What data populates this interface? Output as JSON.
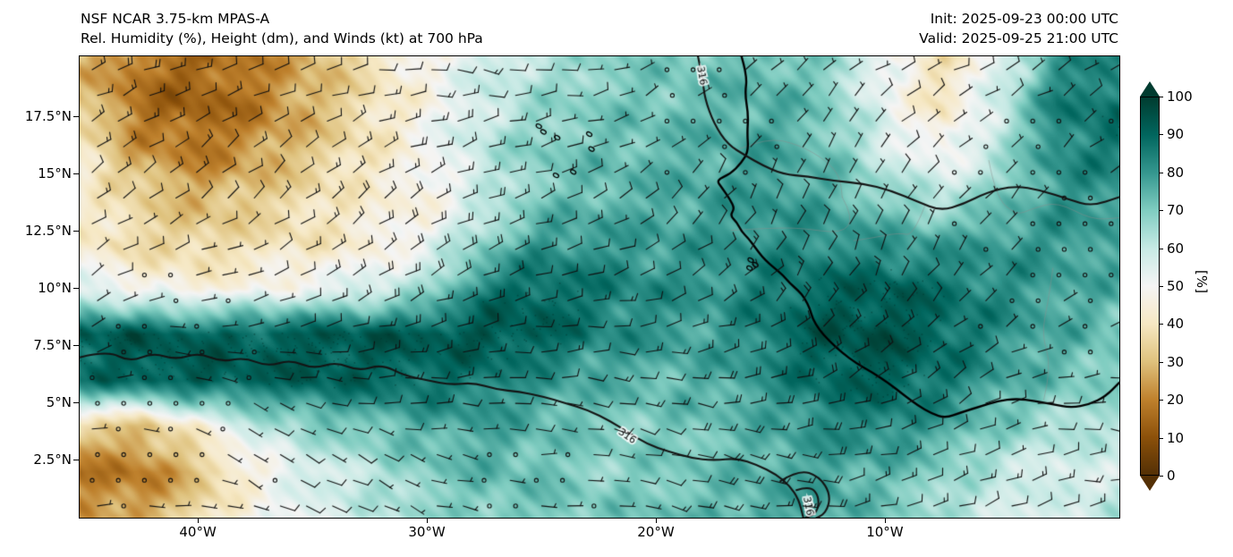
{
  "header": {
    "title_line1": "NSF NCAR 3.75-km MPAS-A",
    "title_line2": "Rel. Humidity (%), Height (dm), and Winds (kt) at 700 hPa",
    "init_label": "Init: 2025-09-23 00:00 UTC",
    "valid_label": "Valid: 2025-09-25 21:00 UTC"
  },
  "chart_data": {
    "type": "heatmap",
    "model": "NSF NCAR 3.75-km MPAS-A",
    "title": "Rel. Humidity (%), Height (dm), and Winds (kt) at 700 hPa",
    "init_time": "2025-09-23 00:00 UTC",
    "valid_time": "2025-09-25 21:00 UTC",
    "field": "relative humidity at 700 hPa (%), with height contours (dm) and wind barbs (kt)",
    "lon_range": [
      -45.2,
      0.2
    ],
    "lat_range": [
      0.0,
      20.15
    ],
    "x_ticks": [
      {
        "value": -40,
        "label": "40°W"
      },
      {
        "value": -30,
        "label": "30°W"
      },
      {
        "value": -20,
        "label": "20°W"
      },
      {
        "value": -10,
        "label": "10°W"
      }
    ],
    "y_ticks": [
      {
        "value": 17.5,
        "label": "17.5°N"
      },
      {
        "value": 15,
        "label": "15°N"
      },
      {
        "value": 12.5,
        "label": "12.5°N"
      },
      {
        "value": 10,
        "label": "10°N"
      },
      {
        "value": 7.5,
        "label": "7.5°N"
      },
      {
        "value": 5,
        "label": "5°N"
      },
      {
        "value": 2.5,
        "label": "2.5°N"
      }
    ],
    "grid_lons": [
      -45,
      -42.5,
      -40,
      -37.5,
      -35,
      -32.5,
      -30,
      -27.5,
      -25,
      -22.5,
      -20,
      -17.5,
      -15,
      -12.5,
      -10,
      -7.5,
      -5,
      -2.5,
      0
    ],
    "grid_lats": [
      20,
      18,
      16,
      14,
      12,
      10,
      8,
      6,
      4,
      2,
      0
    ],
    "rh_grid": [
      [
        28,
        18,
        15,
        20,
        28,
        38,
        48,
        58,
        62,
        68,
        70,
        72,
        74,
        68,
        50,
        38,
        55,
        80,
        84
      ],
      [
        32,
        16,
        13,
        18,
        28,
        38,
        48,
        58,
        66,
        70,
        72,
        74,
        76,
        70,
        52,
        40,
        60,
        85,
        88
      ],
      [
        40,
        24,
        18,
        24,
        32,
        40,
        50,
        62,
        70,
        72,
        74,
        76,
        78,
        72,
        58,
        48,
        62,
        83,
        85
      ],
      [
        45,
        34,
        28,
        32,
        38,
        44,
        46,
        58,
        70,
        74,
        76,
        78,
        80,
        76,
        68,
        62,
        70,
        80,
        80
      ],
      [
        42,
        36,
        34,
        38,
        40,
        44,
        52,
        68,
        80,
        80,
        78,
        80,
        82,
        82,
        80,
        78,
        80,
        80,
        78
      ],
      [
        55,
        48,
        45,
        48,
        52,
        56,
        64,
        86,
        90,
        86,
        82,
        80,
        86,
        90,
        92,
        88,
        82,
        78,
        75
      ],
      [
        92,
        93,
        91,
        91,
        93,
        93,
        93,
        94,
        92,
        84,
        80,
        78,
        86,
        94,
        95,
        90,
        82,
        76,
        72
      ],
      [
        88,
        91,
        93,
        91,
        92,
        90,
        88,
        86,
        80,
        76,
        74,
        76,
        82,
        90,
        92,
        86,
        78,
        72,
        70
      ],
      [
        35,
        30,
        45,
        60,
        68,
        72,
        76,
        78,
        74,
        70,
        70,
        72,
        76,
        82,
        84,
        78,
        70,
        64,
        62
      ],
      [
        18,
        18,
        30,
        46,
        56,
        62,
        70,
        74,
        72,
        68,
        70,
        72,
        76,
        78,
        74,
        68,
        60,
        56,
        58
      ],
      [
        24,
        26,
        36,
        50,
        56,
        60,
        66,
        70,
        72,
        70,
        72,
        74,
        78,
        78,
        70,
        64,
        58,
        56,
        62
      ]
    ],
    "colorbar": {
      "label": "[%]",
      "ticks": [
        0,
        10,
        20,
        30,
        40,
        50,
        60,
        70,
        80,
        90,
        100
      ],
      "extend": "both",
      "stops": [
        {
          "v": 0,
          "c": "#543005"
        },
        {
          "v": 10,
          "c": "#8c510a"
        },
        {
          "v": 20,
          "c": "#bf812d"
        },
        {
          "v": 30,
          "c": "#dfc27d"
        },
        {
          "v": 40,
          "c": "#f6e8c3"
        },
        {
          "v": 50,
          "c": "#f5f5f5"
        },
        {
          "v": 60,
          "c": "#c7eae5"
        },
        {
          "v": 70,
          "c": "#80cdc1"
        },
        {
          "v": 80,
          "c": "#35978f"
        },
        {
          "v": 90,
          "c": "#01665e"
        },
        {
          "v": 100,
          "c": "#003c30"
        }
      ]
    },
    "contours": {
      "value_label": "316",
      "color": "#141414",
      "paths": [
        [
          [
            -18.2,
            20.15
          ],
          [
            -18.0,
            19.2
          ],
          [
            -17.9,
            18.3
          ],
          [
            -17.5,
            17.2
          ],
          [
            -16.9,
            16.3
          ],
          [
            -16.1,
            15.8
          ],
          [
            -15.4,
            15.4
          ],
          [
            -14.5,
            15.0
          ],
          [
            -13.4,
            14.9
          ],
          [
            -12.2,
            14.7
          ],
          [
            -11.0,
            14.6
          ],
          [
            -9.8,
            14.3
          ],
          [
            -8.6,
            13.8
          ],
          [
            -7.6,
            13.4
          ],
          [
            -6.6,
            13.7
          ],
          [
            -5.6,
            14.2
          ],
          [
            -4.4,
            14.5
          ],
          [
            -3.2,
            14.3
          ],
          [
            -2.0,
            13.9
          ],
          [
            -1.0,
            13.6
          ],
          [
            0.2,
            14.0
          ]
        ],
        [
          [
            -45.2,
            7.0
          ],
          [
            -44,
            7.3
          ],
          [
            -43,
            6.8
          ],
          [
            -42,
            7.2
          ],
          [
            -41,
            6.9
          ],
          [
            -40,
            7.2
          ],
          [
            -39,
            6.8
          ],
          [
            -38,
            7.0
          ],
          [
            -37,
            6.6
          ],
          [
            -36,
            6.9
          ],
          [
            -35,
            6.5
          ],
          [
            -34,
            6.8
          ],
          [
            -33,
            6.4
          ],
          [
            -32,
            6.7
          ],
          [
            -31,
            6.2
          ],
          [
            -30,
            6.0
          ],
          [
            -29,
            5.8
          ],
          [
            -28,
            5.9
          ],
          [
            -27,
            5.6
          ],
          [
            -26,
            5.5
          ],
          [
            -25,
            5.3
          ],
          [
            -24,
            5.0
          ],
          [
            -23,
            4.7
          ],
          [
            -22,
            4.2
          ],
          [
            -21.2,
            3.7
          ],
          [
            -20.4,
            3.2
          ],
          [
            -19.5,
            2.9
          ],
          [
            -18.5,
            2.6
          ],
          [
            -17.5,
            2.5
          ],
          [
            -16.5,
            2.6
          ],
          [
            -15.6,
            2.3
          ],
          [
            -14.8,
            1.9
          ],
          [
            -14.2,
            1.4
          ],
          [
            -13.8,
            0.8
          ],
          [
            -13.6,
            0.0
          ]
        ],
        [
          [
            -14.6,
            1.6
          ],
          [
            -13.8,
            2.1
          ],
          [
            -12.9,
            1.8
          ],
          [
            -12.4,
            1.0
          ],
          [
            -12.6,
            0.2
          ],
          [
            -13.2,
            -0.1
          ]
        ],
        [
          [
            -13.9,
            1.2
          ],
          [
            -13.3,
            1.4
          ],
          [
            -12.9,
            0.9
          ],
          [
            -13.0,
            0.2
          ],
          [
            -13.5,
            0.0
          ]
        ]
      ],
      "labels": [
        {
          "lon": -18.05,
          "lat": 19.3,
          "rot": 80
        },
        {
          "lon": -21.3,
          "lat": 3.55,
          "rot": 35
        },
        {
          "lon": -13.4,
          "lat": 0.5,
          "rot": 78
        }
      ]
    },
    "coastline": {
      "color": "#000000",
      "main": [
        [
          -16.3,
          20.15
        ],
        [
          -16.05,
          19.3
        ],
        [
          -16.15,
          18.5
        ],
        [
          -16.0,
          17.6
        ],
        [
          -16.05,
          16.8
        ],
        [
          -16.0,
          16.0
        ],
        [
          -16.3,
          15.5
        ],
        [
          -16.8,
          15.0
        ],
        [
          -17.4,
          14.75
        ],
        [
          -17.15,
          14.4
        ],
        [
          -16.8,
          13.9
        ],
        [
          -16.6,
          13.5
        ],
        [
          -16.8,
          13.2
        ],
        [
          -16.5,
          12.9
        ],
        [
          -16.3,
          12.5
        ],
        [
          -16.0,
          12.2
        ],
        [
          -15.7,
          11.8
        ],
        [
          -15.4,
          11.4
        ],
        [
          -15.1,
          11.1
        ],
        [
          -14.8,
          10.85
        ],
        [
          -14.5,
          10.6
        ],
        [
          -14.2,
          10.25
        ],
        [
          -13.8,
          9.9
        ],
        [
          -13.55,
          9.6
        ],
        [
          -13.3,
          9.1
        ],
        [
          -13.2,
          8.7
        ],
        [
          -12.9,
          8.2
        ],
        [
          -12.5,
          7.75
        ],
        [
          -11.9,
          7.2
        ],
        [
          -11.3,
          6.75
        ],
        [
          -10.6,
          6.35
        ],
        [
          -9.9,
          5.9
        ],
        [
          -9.2,
          5.35
        ],
        [
          -8.6,
          4.9
        ],
        [
          -8.0,
          4.55
        ],
        [
          -7.4,
          4.35
        ],
        [
          -6.7,
          4.6
        ],
        [
          -5.9,
          4.85
        ],
        [
          -5.1,
          5.1
        ],
        [
          -4.3,
          5.2
        ],
        [
          -3.5,
          5.1
        ],
        [
          -2.7,
          4.95
        ],
        [
          -1.9,
          4.8
        ],
        [
          -1.1,
          4.95
        ],
        [
          -0.4,
          5.3
        ],
        [
          0.2,
          5.9
        ]
      ],
      "islands": [
        [
          -25.15,
          17.1
        ],
        [
          -24.95,
          16.85
        ],
        [
          -24.35,
          16.6
        ],
        [
          -22.95,
          16.75
        ],
        [
          -22.85,
          16.1
        ],
        [
          -23.65,
          15.1
        ],
        [
          -24.4,
          14.95
        ],
        [
          -15.9,
          11.25
        ],
        [
          -15.7,
          11.05
        ],
        [
          -15.95,
          10.9
        ]
      ],
      "borders": [
        [
          [
            -16.4,
            16.1
          ],
          [
            -15.2,
            16.6
          ],
          [
            -13.8,
            16.3
          ],
          [
            -12.6,
            15.6
          ],
          [
            -12.0,
            14.9
          ],
          [
            -11.9,
            14.0
          ]
        ],
        [
          [
            -11.9,
            14.0
          ],
          [
            -11.4,
            13.1
          ],
          [
            -11.9,
            12.4
          ],
          [
            -13.7,
            12.65
          ],
          [
            -14.9,
            12.65
          ],
          [
            -16.75,
            12.55
          ]
        ],
        [
          [
            -5.5,
            15.6
          ],
          [
            -5.2,
            14.0
          ],
          [
            -4.3,
            13.2
          ],
          [
            -3.6,
            13.5
          ],
          [
            -2.5,
            13.8
          ],
          [
            -1.0,
            13.0
          ],
          [
            0.2,
            13.1
          ]
        ],
        [
          [
            -8.3,
            13.6
          ],
          [
            -8.8,
            12.3
          ],
          [
            -9.4,
            12.45
          ],
          [
            -10.7,
            12.2
          ],
          [
            -11.4,
            12.1
          ]
        ],
        [
          [
            -3.1,
            5.15
          ],
          [
            -2.75,
            6.6
          ],
          [
            -3.2,
            8.0
          ],
          [
            -2.9,
            9.5
          ],
          [
            -2.7,
            10.9
          ]
        ]
      ]
    },
    "wind_barbs": {
      "units": "kt",
      "displayed": true,
      "full_barb_kt": 10,
      "half_barb_kt": 5
    }
  }
}
